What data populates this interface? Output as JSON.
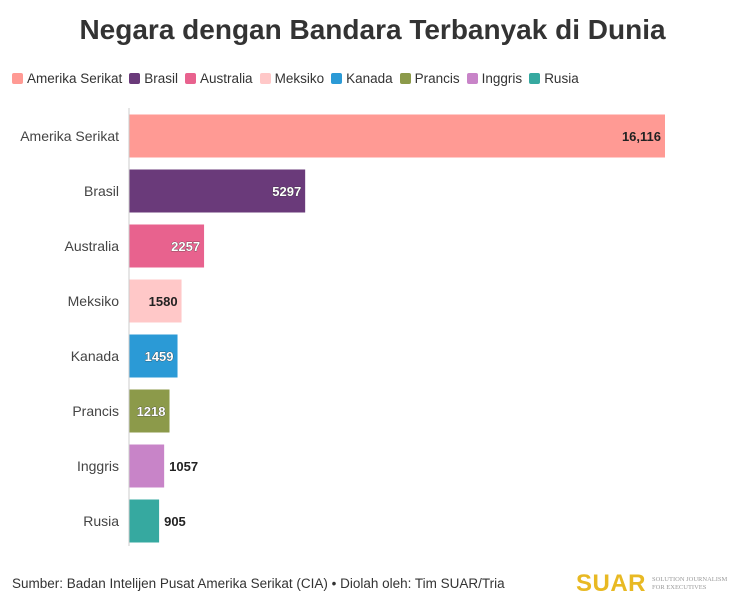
{
  "chart_data": {
    "type": "bar",
    "orientation": "horizontal",
    "title": "Negara dengan Bandara Terbanyak di Dunia",
    "categories": [
      "Amerika Serikat",
      "Brasil",
      "Australia",
      "Meksiko",
      "Kanada",
      "Prancis",
      "Inggris",
      "Rusia"
    ],
    "values": [
      16116,
      5297,
      2257,
      1580,
      1459,
      1218,
      1057,
      905
    ],
    "data_labels": [
      "16,116",
      "5297",
      "2257",
      "1580",
      "1459",
      "1218",
      "1057",
      "905"
    ],
    "colors": [
      "#ff9a94",
      "#6a3a7a",
      "#e8628e",
      "#ffc8c8",
      "#2b9ad6",
      "#8c9a4a",
      "#c884c8",
      "#36a9a0"
    ],
    "legend_position": "top-left",
    "grid": false,
    "xlim": [
      0,
      16116
    ]
  },
  "footer": {
    "source": "Sumber: Badan Intelijen Pusat Amerika Serikat (CIA) • Diolah oleh: Tim SUAR/Tria"
  },
  "logo": {
    "wordmark": "SUAR",
    "tagline": "SOLUTION JOURNALISM FOR EXECUTIVES"
  }
}
